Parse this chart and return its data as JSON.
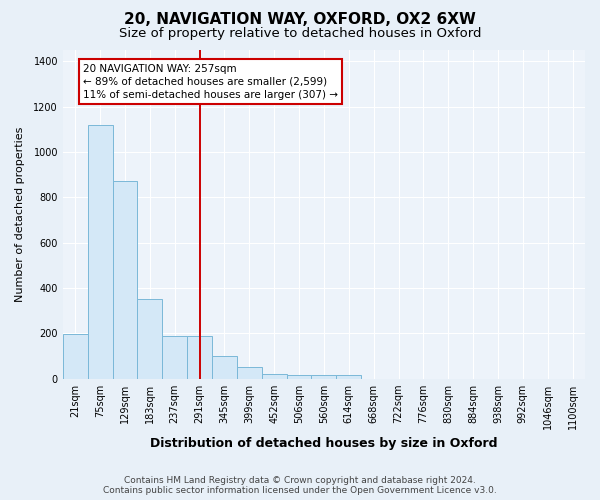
{
  "title": "20, NAVIGATION WAY, OXFORD, OX2 6XW",
  "subtitle": "Size of property relative to detached houses in Oxford",
  "xlabel": "Distribution of detached houses by size in Oxford",
  "ylabel": "Number of detached properties",
  "footer_line1": "Contains HM Land Registry data © Crown copyright and database right 2024.",
  "footer_line2": "Contains public sector information licensed under the Open Government Licence v3.0.",
  "categories": [
    "21sqm",
    "75sqm",
    "129sqm",
    "183sqm",
    "237sqm",
    "291sqm",
    "345sqm",
    "399sqm",
    "452sqm",
    "506sqm",
    "560sqm",
    "614sqm",
    "668sqm",
    "722sqm",
    "776sqm",
    "830sqm",
    "884sqm",
    "938sqm",
    "992sqm",
    "1046sqm",
    "1100sqm"
  ],
  "values": [
    196,
    1120,
    870,
    350,
    190,
    190,
    100,
    50,
    20,
    15,
    15,
    15,
    0,
    0,
    0,
    0,
    0,
    0,
    0,
    0,
    0
  ],
  "bar_color": "#d4e8f7",
  "bar_edge_color": "#7ab8d8",
  "bar_linewidth": 0.7,
  "vline_x": 5.0,
  "vline_color": "#cc0000",
  "vline_linewidth": 1.4,
  "annotation_text": "20 NAVIGATION WAY: 257sqm\n← 89% of detached houses are smaller (2,599)\n11% of semi-detached houses are larger (307) →",
  "annotation_box_color": "white",
  "annotation_box_edge_color": "#cc0000",
  "ylim": [
    0,
    1450
  ],
  "yticks": [
    0,
    200,
    400,
    600,
    800,
    1000,
    1200,
    1400
  ],
  "bg_color": "#e8f0f8",
  "plot_bg_color": "#edf3fa",
  "grid_color": "#ffffff",
  "title_fontsize": 11,
  "subtitle_fontsize": 9.5,
  "xlabel_fontsize": 9,
  "ylabel_fontsize": 8,
  "tick_fontsize": 7,
  "annotation_fontsize": 7.5,
  "footer_fontsize": 6.5
}
